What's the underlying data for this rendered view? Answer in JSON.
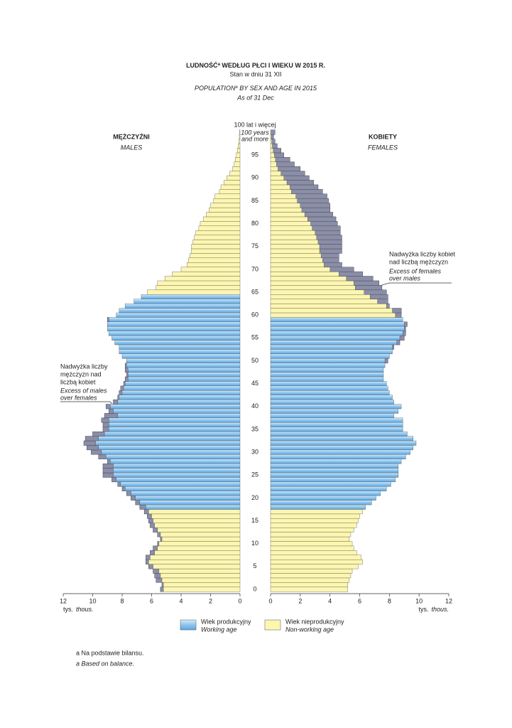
{
  "chart_data": {
    "type": "pyramid",
    "title_pl": "LUDNOŚĆ",
    "title_mark": "a",
    "title_pl_rest": " WEDŁUG PŁCI I WIEKU W 2015 R.",
    "subtitle_pl": "Stan w dniu 31 XII",
    "title_en": "POPULATION",
    "title_en_rest": " BY SEX AND AGE IN 2015",
    "subtitle_en": "As of 31 Dec",
    "categories": [
      "0",
      null,
      null,
      null,
      null,
      "5",
      null,
      null,
      null,
      null,
      "10",
      null,
      null,
      null,
      null,
      "15",
      null,
      null,
      null,
      null,
      "20",
      null,
      null,
      null,
      null,
      "25",
      null,
      null,
      null,
      null,
      "30",
      null,
      null,
      null,
      null,
      "35",
      null,
      null,
      null,
      null,
      "40",
      null,
      null,
      null,
      null,
      "45",
      null,
      null,
      null,
      null,
      "50",
      null,
      null,
      null,
      null,
      "55",
      null,
      null,
      null,
      null,
      "60",
      null,
      null,
      null,
      null,
      "65",
      null,
      null,
      null,
      null,
      "70",
      null,
      null,
      null,
      null,
      "75",
      null,
      null,
      null,
      null,
      "80",
      null,
      null,
      null,
      null,
      "85",
      null,
      null,
      null,
      null,
      "90",
      null,
      null,
      null,
      null,
      "95",
      null,
      null,
      null,
      null,
      "100 lat i więcej"
    ],
    "top_category_en": [
      "100 years",
      "and more"
    ],
    "series": [
      {
        "name": "MĘŻCZYŹNI",
        "name_en": "MALES",
        "side": "left",
        "working_age": [
          18,
          64
        ],
        "values": [
          5.4,
          5.3,
          5.7,
          5.8,
          5.9,
          6.2,
          6.4,
          6.4,
          6.1,
          5.9,
          5.6,
          5.4,
          5.6,
          5.9,
          6.1,
          6.2,
          6.3,
          6.5,
          6.8,
          7.1,
          7.4,
          7.7,
          8.0,
          8.3,
          8.7,
          9.3,
          9.3,
          9.3,
          9.0,
          9.6,
          10.1,
          10.4,
          10.6,
          10.5,
          10.0,
          9.3,
          9.3,
          9.4,
          9.2,
          8.9,
          9.1,
          8.6,
          8.3,
          8.2,
          8.1,
          7.9,
          7.8,
          7.7,
          7.8,
          7.8,
          7.7,
          8.0,
          8.2,
          8.2,
          8.5,
          8.7,
          8.9,
          9.0,
          9.0,
          9.0,
          8.4,
          8.2,
          7.8,
          7.2,
          6.7,
          6.3,
          5.7,
          5.6,
          5.1,
          4.6,
          4.0,
          3.6,
          3.5,
          3.4,
          3.3,
          3.3,
          3.2,
          3.1,
          3.0,
          2.8,
          2.7,
          2.5,
          2.3,
          2.1,
          2.0,
          1.8,
          1.7,
          1.4,
          1.3,
          1.1,
          0.9,
          0.7,
          0.5,
          0.4,
          0.33,
          0.25,
          0.18,
          0.12,
          0.08,
          0.05,
          0.04
        ]
      },
      {
        "name": "KOBIETY",
        "name_en": "FEMALES",
        "side": "right",
        "working_age": [
          18,
          59
        ],
        "values": [
          5.2,
          5.2,
          5.3,
          5.4,
          5.5,
          5.9,
          6.2,
          6.1,
          5.8,
          5.6,
          5.5,
          5.3,
          5.4,
          5.6,
          5.8,
          5.9,
          6.0,
          6.2,
          6.4,
          6.8,
          7.1,
          7.4,
          7.8,
          8.1,
          8.4,
          8.6,
          8.6,
          8.6,
          8.8,
          9.1,
          9.4,
          9.6,
          9.8,
          9.6,
          9.2,
          8.9,
          8.9,
          8.9,
          8.3,
          8.6,
          8.8,
          8.3,
          8.2,
          8.0,
          7.9,
          7.8,
          7.6,
          7.6,
          7.6,
          7.7,
          7.9,
          8.0,
          8.2,
          8.3,
          8.7,
          9.0,
          9.1,
          9.1,
          9.2,
          8.9,
          8.8,
          8.8,
          8.0,
          7.9,
          7.9,
          7.8,
          7.5,
          7.3,
          6.9,
          6.2,
          5.6,
          4.8,
          4.6,
          4.6,
          4.8,
          4.8,
          4.8,
          4.8,
          4.7,
          4.7,
          4.5,
          4.4,
          4.2,
          4.0,
          4.0,
          3.9,
          3.8,
          3.5,
          3.2,
          2.9,
          2.6,
          2.3,
          2.0,
          1.6,
          1.3,
          0.9,
          0.7,
          0.45,
          0.3,
          0.2,
          0.3
        ]
      }
    ],
    "xlim": [
      0,
      12
    ],
    "xticks": [
      0,
      2,
      4,
      6,
      8,
      10,
      12
    ],
    "unit_pl": "tys.",
    "unit_en": "thous.",
    "working_color": "#8cc4ee",
    "nonworking_color": "#fcf6b0",
    "excess_color": "#8a8ea6",
    "legend": [
      {
        "name": "Wiek produkcyjny",
        "name_en": "Working age"
      },
      {
        "name": "Wiek nieprodukcyjny",
        "name_en": "Non-working age"
      }
    ],
    "annotation_females": [
      "Nadwyżka liczby kobiet",
      "nad liczbą mężczyzn",
      "Excess of females",
      "over males"
    ],
    "annotation_males": [
      "Nadwyżka liczby",
      "mężczyzn nad",
      "liczbą kobiet",
      "Excess of males",
      "over females"
    ],
    "footnote_pl": "a  Na podstawie bilansu.",
    "footnote_en": "a  Based on balance."
  }
}
